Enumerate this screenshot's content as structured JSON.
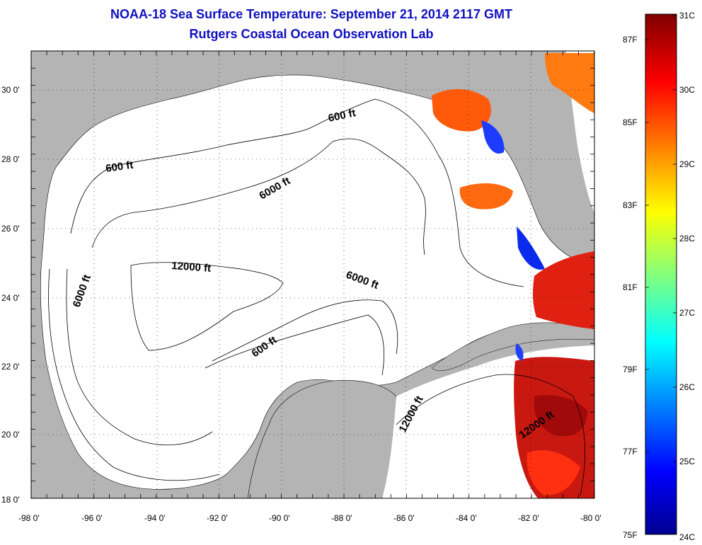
{
  "title": {
    "line1": "NOAA-18 Sea Surface Temperature:  September 21, 2014 2117 GMT",
    "line2": "Rutgers Coastal Ocean Observation Lab"
  },
  "map": {
    "x_ticks": [
      "-98 0'",
      "-96 0'",
      "-94 0'",
      "-92 0'",
      "-90 0'",
      "-88 0'",
      "-86 0'",
      "-84 0'",
      "-82 0'",
      "-80 0'"
    ],
    "y_ticks": [
      "30 0'",
      "28 0'",
      "26 0'",
      "24 0'",
      "22 0'",
      "20 0'",
      "18 0'"
    ],
    "contour_labels": [
      "600 ft",
      "600 ft",
      "6000 ft",
      "6000 ft",
      "6000 ft",
      "12000 ft",
      "600 ft",
      "12000 ft",
      "12000 ft"
    ],
    "colors": {
      "land": "#b4b4b4",
      "ocean": "#ffffff",
      "grid": "#000000"
    }
  },
  "colorbar": {
    "celsius": [
      "31C",
      "30C",
      "29C",
      "28C",
      "27C",
      "26C",
      "25C",
      "24C"
    ],
    "fahrenheit": [
      "87F",
      "85F",
      "83F",
      "81F",
      "79F",
      "77F",
      "75F"
    ]
  }
}
